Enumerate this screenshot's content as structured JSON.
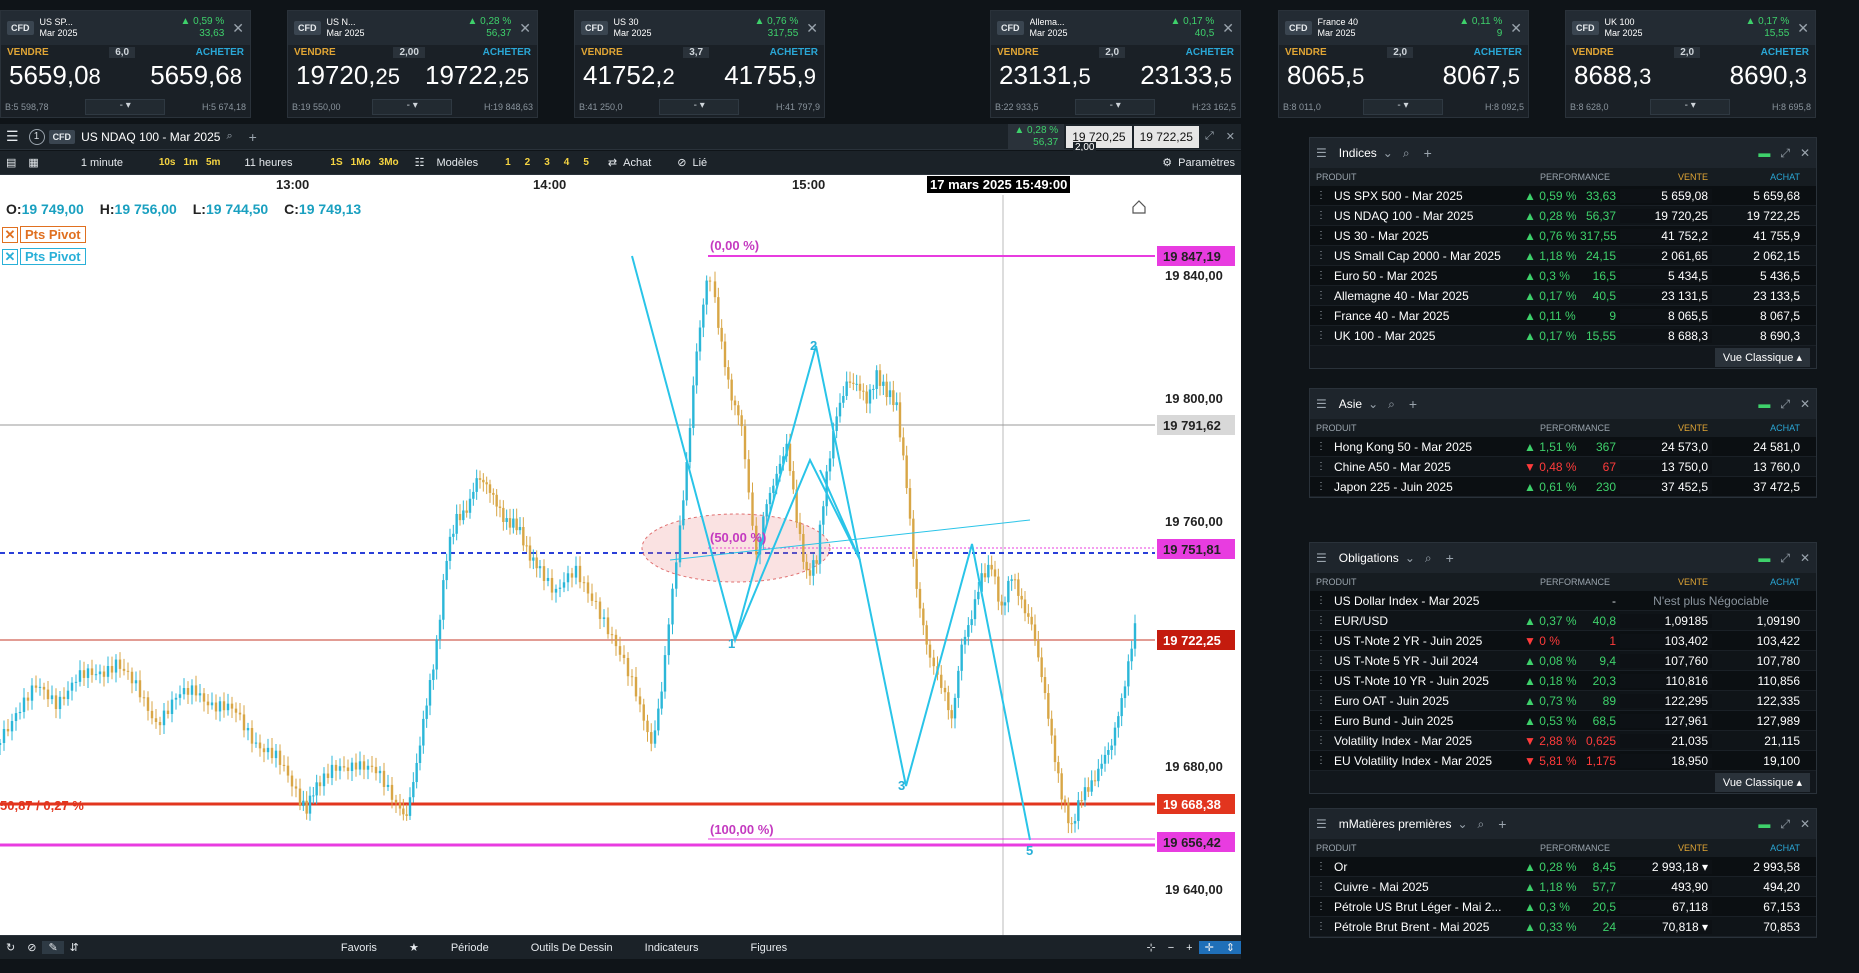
{
  "tiles": [
    {
      "name1": "US SP...",
      "name2": "Mar 2025",
      "perf": "▲ 0,59 %",
      "chg": "33,63",
      "spread": "6,0",
      "sell_main": "5659,0",
      "sell_small": "8",
      "buy_main": "5659,6",
      "buy_small": "8",
      "low": "B:5 598,78",
      "high": "H:5 674,18",
      "qty": "-"
    },
    {
      "name1": "US N...",
      "name2": "Mar 2025",
      "perf": "▲ 0,28 %",
      "chg": "56,37",
      "spread": "2,00",
      "sell_main": "19720,",
      "sell_small": "25",
      "buy_main": "19722,",
      "buy_small": "25",
      "low": "B:19 550,00",
      "high": "H:19 848,63",
      "qty": "-"
    },
    {
      "name1": "US 30",
      "name2": "Mar 2025",
      "perf": "▲ 0,76 %",
      "chg": "317,55",
      "spread": "3,7",
      "sell_main": "41752,",
      "sell_small": "2",
      "buy_main": "41755,",
      "buy_small": "9",
      "low": "B:41 250,0",
      "high": "H:41 797,9",
      "qty": "-"
    },
    {
      "name1": "Allema...",
      "name2": "Mar 2025",
      "perf": "▲ 0,17 %",
      "chg": "40,5",
      "spread": "2,0",
      "sell_main": "23131,",
      "sell_small": "5",
      "buy_main": "23133,",
      "buy_small": "5",
      "low": "B:22 933,5",
      "high": "H:23 162,5",
      "qty": "-"
    },
    {
      "name1": "France 40",
      "name2": "Mar 2025",
      "perf": "▲ 0,11 %",
      "chg": "9",
      "spread": "2,0",
      "sell_main": "8065,",
      "sell_small": "5",
      "buy_main": "8067,",
      "buy_small": "5",
      "low": "B:8 011,0",
      "high": "H:8 092,5",
      "qty": "-"
    },
    {
      "name1": "UK 100",
      "name2": "Mar 2025",
      "perf": "▲ 0,17 %",
      "chg": "15,55",
      "spread": "2,0",
      "sell_main": "8688,",
      "sell_small": "3",
      "buy_main": "8690,",
      "buy_small": "3",
      "low": "B:8 628,0",
      "high": "H:8 695,8",
      "qty": "-"
    }
  ],
  "labels": {
    "sell": "VENDRE",
    "buy": "ACHETER",
    "cfd": "CFD"
  },
  "chart_header": {
    "instrument": "US NDAQ 100 - Mar 2025",
    "perf": "▲ 0,28 %",
    "chg": "56,37",
    "sell": "19 720,25",
    "buy": "19 722,25",
    "spread": "2,00",
    "tab_no": "1"
  },
  "chart_toolbar": {
    "interval": "1 minute",
    "i1": "10s",
    "i2": "1m",
    "i3": "5m",
    "range": "11 heures",
    "r1": "1S",
    "r2": "1Mo",
    "r3": "3Mo",
    "models": "Modèles",
    "n1": "1",
    "n2": "2",
    "n3": "3",
    "n4": "4",
    "n5": "5",
    "buy": "Achat",
    "linked": "Lié",
    "settings": "Paramètres"
  },
  "ohlc": {
    "o_label": "O:",
    "o": "19 749,00",
    "h_label": "H:",
    "h": "19 756,00",
    "l_label": "L:",
    "l": "19 744,50",
    "c_label": "C:",
    "c": "19 749,13"
  },
  "legend": [
    "Pts Pivot",
    "Pts Pivot"
  ],
  "time_axis": [
    "13:00",
    "14:00",
    "15:00"
  ],
  "crosshair_time": "17 mars 2025 15:49:00",
  "price_axis": [
    "19 840,00",
    "19 800,00",
    "19 760,00",
    "19 680,00",
    "19 640,00"
  ],
  "price_tags": {
    "top": "19 847,19",
    "h1": "19 791,62",
    "mid": "19 751,81",
    "cur": "19 722,25",
    "low": "19 668,38",
    "bot": "19 656,42"
  },
  "fib": {
    "f0": "(0,00 %)",
    "f50": "(50,00 %)",
    "f100": "(100,00 %)"
  },
  "wave_labels": [
    "1",
    "2",
    "3",
    "5"
  ],
  "left_line_label": "50,87 / 0,27 %",
  "bottom_bar": {
    "fav": "Favoris",
    "period": "Période",
    "tools": "Outils De Dessin",
    "ind": "Indicateurs",
    "fig": "Figures"
  },
  "cols": {
    "product": "PRODUIT",
    "perf": "PERFORMANCE",
    "sell": "VENTE",
    "buy": "ACHAT"
  },
  "panels": {
    "indices": {
      "title": "Indices",
      "footer": "Vue Classique",
      "rows": [
        {
          "name": "US SPX 500 - Mar 2025",
          "perf": "▲ 0,59 %",
          "chg": "33,63",
          "sell": "5 659,08",
          "buy": "5 659,68",
          "dir": "up"
        },
        {
          "name": "US NDAQ 100 - Mar 2025",
          "perf": "▲ 0,28 %",
          "chg": "56,37",
          "sell": "19 720,25",
          "buy": "19 722,25",
          "dir": "up"
        },
        {
          "name": "US 30 - Mar 2025",
          "perf": "▲ 0,76 %",
          "chg": "317,55",
          "sell": "41 752,2",
          "buy": "41 755,9",
          "dir": "up"
        },
        {
          "name": "US Small Cap 2000 - Mar 2025",
          "perf": "▲ 1,18 %",
          "chg": "24,15",
          "sell": "2 061,65",
          "buy": "2 062,15",
          "dir": "up"
        },
        {
          "name": "Euro 50 - Mar 2025",
          "perf": "▲ 0,3 %",
          "chg": "16,5",
          "sell": "5 434,5",
          "buy": "5 436,5",
          "dir": "up"
        },
        {
          "name": "Allemagne 40 - Mar 2025",
          "perf": "▲ 0,17 %",
          "chg": "40,5",
          "sell": "23 131,5",
          "buy": "23 133,5",
          "dir": "up"
        },
        {
          "name": "France 40 - Mar 2025",
          "perf": "▲ 0,11 %",
          "chg": "9",
          "sell": "8 065,5",
          "buy": "8 067,5",
          "dir": "up"
        },
        {
          "name": "UK 100 - Mar 2025",
          "perf": "▲ 0,17 %",
          "chg": "15,55",
          "sell": "8 688,3",
          "buy": "8 690,3",
          "dir": "up"
        }
      ]
    },
    "asie": {
      "title": "Asie",
      "rows": [
        {
          "name": "Hong Kong 50 - Mar 2025",
          "perf": "▲ 1,51 %",
          "chg": "367",
          "sell": "24 573,0",
          "buy": "24 581,0",
          "dir": "up"
        },
        {
          "name": "Chine A50 - Mar 2025",
          "perf": "▼ 0,48 %",
          "chg": "67",
          "sell": "13 750,0",
          "buy": "13 760,0",
          "dir": "down"
        },
        {
          "name": "Japon 225 - Juin 2025",
          "perf": "▲ 0,61 %",
          "chg": "230",
          "sell": "37 452,5",
          "buy": "37 472,5",
          "dir": "up"
        }
      ]
    },
    "obligations": {
      "title": "Obligations",
      "footer": "Vue Classique",
      "rows": [
        {
          "name": "US Dollar Index - Mar 2025",
          "perf": "",
          "chg": "-",
          "sell": "N'est plus Négociable",
          "buy": "",
          "dir": "none"
        },
        {
          "name": "EUR/USD",
          "perf": "▲ 0,37 %",
          "chg": "40,8",
          "sell": "1,09185",
          "buy": "1,09190",
          "dir": "up"
        },
        {
          "name": "US T-Note 2 YR - Juin 2025",
          "perf": "▼ 0 %",
          "chg": "1",
          "sell": "103,402",
          "buy": "103,422",
          "dir": "down"
        },
        {
          "name": "US T-Note 5 YR - Juil 2024",
          "perf": "▲ 0,08 %",
          "chg": "9,4",
          "sell": "107,760",
          "buy": "107,780",
          "dir": "up"
        },
        {
          "name": "US T-Note 10 YR - Juin 2025",
          "perf": "▲ 0,18 %",
          "chg": "20,3",
          "sell": "110,816",
          "buy": "110,856",
          "dir": "up"
        },
        {
          "name": "Euro OAT - Juin 2025",
          "perf": "▲ 0,73 %",
          "chg": "89",
          "sell": "122,295",
          "buy": "122,335",
          "dir": "up"
        },
        {
          "name": "Euro Bund - Juin 2025",
          "perf": "▲ 0,53 %",
          "chg": "68,5",
          "sell": "127,961",
          "buy": "127,989",
          "dir": "up"
        },
        {
          "name": "Volatility Index - Mar 2025",
          "perf": "▼ 2,88 %",
          "chg": "0,625",
          "sell": "21,035",
          "buy": "21,115",
          "dir": "down"
        },
        {
          "name": "EU Volatility Index - Mar 2025",
          "perf": "▼ 5,81 %",
          "chg": "1,175",
          "sell": "18,950",
          "buy": "19,100",
          "dir": "down"
        }
      ]
    },
    "matieres": {
      "title": "mMatières premières",
      "rows": [
        {
          "name": "Or",
          "perf": "▲ 0,28 %",
          "chg": "8,45",
          "sell": "2 993,18 ▾",
          "buy": "2 993,58",
          "dir": "up"
        },
        {
          "name": "Cuivre - Mai 2025",
          "perf": "▲ 1,18 %",
          "chg": "57,7",
          "sell": "493,90",
          "buy": "494,20",
          "dir": "up"
        },
        {
          "name": "Pétrole US Brut Léger - Mai 2...",
          "perf": "▲ 0,3 %",
          "chg": "20,5",
          "sell": "67,118",
          "buy": "67,153",
          "dir": "up"
        },
        {
          "name": "Pétrole Brut Brent - Mai 2025",
          "perf": "▲ 0,33 %",
          "chg": "24",
          "sell": "70,818 ▾",
          "buy": "70,853",
          "dir": "up"
        }
      ]
    }
  }
}
